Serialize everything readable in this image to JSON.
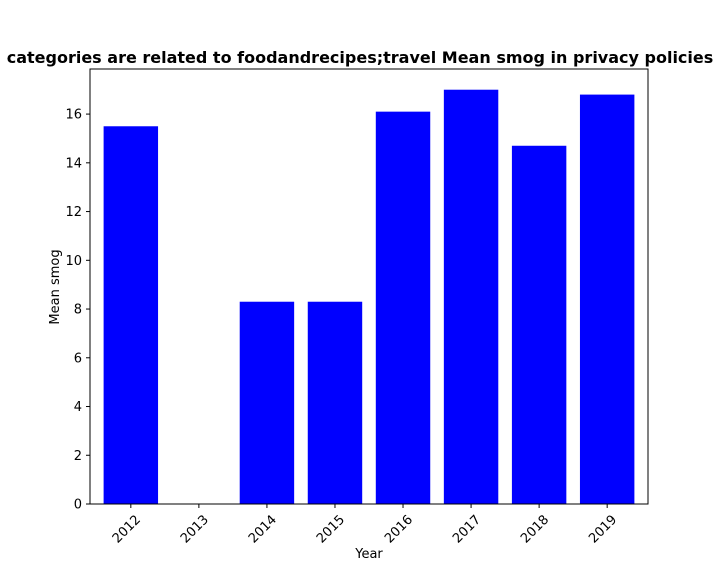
{
  "chart_data": {
    "type": "bar",
    "title": "categories are related to foodandrecipes;travel Mean smog in privacy policies",
    "xlabel": "Year",
    "ylabel": "Mean smog",
    "categories": [
      "2012",
      "2013",
      "2014",
      "2015",
      "2016",
      "2017",
      "2018",
      "2019"
    ],
    "values": [
      15.5,
      0,
      8.3,
      8.3,
      16.1,
      17.0,
      14.7,
      16.8
    ],
    "ylim": [
      0,
      17.85
    ],
    "yticks": [
      0,
      2,
      4,
      6,
      8,
      10,
      12,
      14,
      16
    ],
    "bar_color": "#0000ff",
    "grid": false,
    "xtick_rotation_deg": 45
  }
}
